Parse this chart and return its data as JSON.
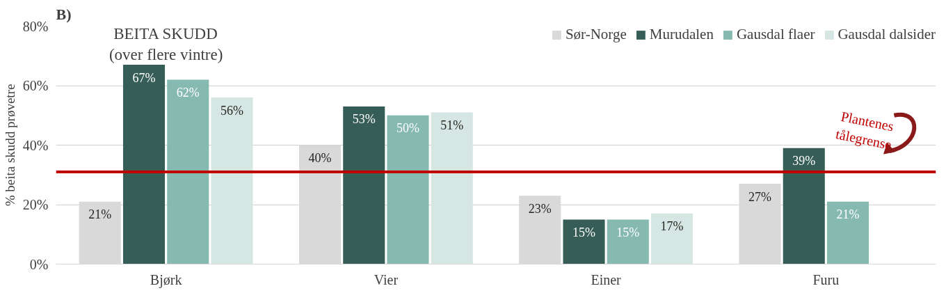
{
  "chart_data": {
    "type": "bar",
    "title": "B)",
    "ylabel": "% beita skudd prøvetre",
    "categories": [
      "Bjørk",
      "Vier",
      "Einer",
      "Furu"
    ],
    "series": [
      {
        "name": "Sør-Norge",
        "color": "#d9d9d9",
        "values": [
          21,
          40,
          23,
          27
        ],
        "value_labels": [
          "21%",
          "40%",
          "23%",
          "27%"
        ]
      },
      {
        "name": "Murudalen",
        "color": "#365e57",
        "values": [
          67,
          53,
          15,
          39
        ],
        "value_labels": [
          "67%",
          "53%",
          "15%",
          "39%"
        ]
      },
      {
        "name": "Gausdal flaer",
        "color": "#86b9b0",
        "values": [
          62,
          50,
          15,
          21
        ],
        "value_labels": [
          "62%",
          "50%",
          "15%",
          "21%"
        ]
      },
      {
        "name": "Gausdal dalsider",
        "color": "#d6e6e3",
        "values": [
          56,
          51,
          17,
          null
        ],
        "value_labels": [
          "56%",
          "51%",
          "17%",
          null
        ]
      }
    ],
    "ylim": [
      0,
      80
    ],
    "yticks": [
      {
        "value": 0,
        "label": "0%"
      },
      {
        "value": 20,
        "label": "20%"
      },
      {
        "value": 40,
        "label": "40%"
      },
      {
        "value": 60,
        "label": "60%"
      },
      {
        "value": 80,
        "label": "80%"
      }
    ],
    "grid": "y",
    "legend": "top",
    "annotations": [
      "BEITA SKUDD\n(over flere vintre)"
    ],
    "ref_lines": [
      {
        "axis": "y",
        "value": 31,
        "label": "Plantenes\ntålegrense",
        "color": "#c00000"
      }
    ]
  }
}
